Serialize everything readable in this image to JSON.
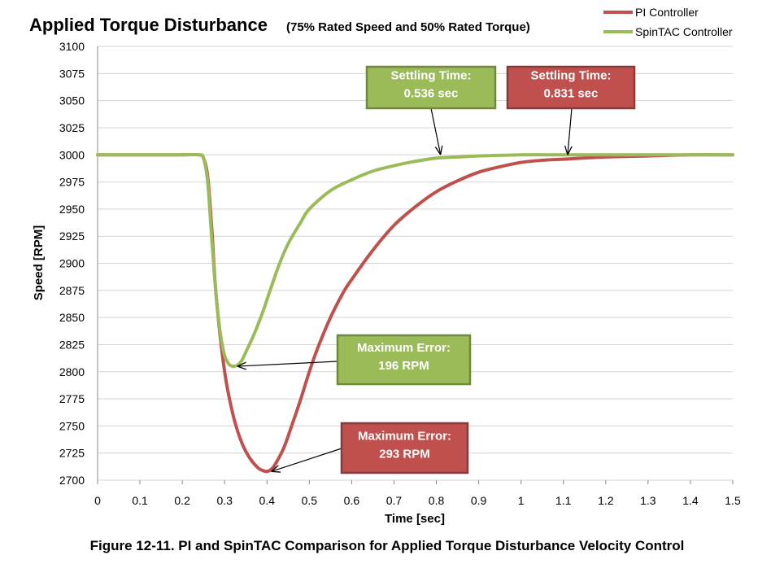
{
  "chart_data": {
    "type": "line",
    "title": "Applied Torque Disturbance",
    "subtitle": "(75% Rated Speed and 50% Rated Torque)",
    "xlabel": "Time [sec]",
    "ylabel": "Speed [RPM]",
    "xlim": [
      0,
      1.5
    ],
    "ylim": [
      2700,
      3100
    ],
    "xticks": [
      "0",
      "0.1",
      "0.2",
      "0.3",
      "0.4",
      "0.5",
      "0.6",
      "0.7",
      "0.8",
      "0.9",
      "1",
      "1.1",
      "1.2",
      "1.3",
      "1.4",
      "1.5"
    ],
    "yticks": [
      "3100",
      "3075",
      "3050",
      "3025",
      "3000",
      "2975",
      "2950",
      "2925",
      "2900",
      "2875",
      "2850",
      "2825",
      "2800",
      "2775",
      "2750",
      "2725",
      "2700"
    ],
    "grid": "horizontal",
    "legend_position": "top-right",
    "series": [
      {
        "name": "PI Controller",
        "color": "#c0504d",
        "x": [
          0,
          0.1,
          0.2,
          0.24,
          0.25,
          0.26,
          0.27,
          0.28,
          0.3,
          0.32,
          0.34,
          0.36,
          0.38,
          0.39,
          0.4,
          0.41,
          0.42,
          0.44,
          0.46,
          0.48,
          0.5,
          0.52,
          0.55,
          0.58,
          0.6,
          0.65,
          0.7,
          0.75,
          0.8,
          0.85,
          0.9,
          0.95,
          1.0,
          1.05,
          1.1,
          1.2,
          1.3,
          1.4,
          1.5
        ],
        "y": [
          3000,
          3000,
          3000,
          3000,
          2997,
          2980,
          2930,
          2870,
          2800,
          2760,
          2735,
          2720,
          2711,
          2709,
          2708,
          2710,
          2715,
          2730,
          2752,
          2775,
          2800,
          2822,
          2850,
          2873,
          2885,
          2912,
          2935,
          2952,
          2966,
          2976,
          2984,
          2989,
          2993,
          2995,
          2996,
          2998,
          2999,
          3000,
          3000
        ]
      },
      {
        "name": "SpinTAC Controller",
        "color": "#9bbb59",
        "x": [
          0,
          0.1,
          0.2,
          0.24,
          0.25,
          0.26,
          0.27,
          0.28,
          0.29,
          0.3,
          0.31,
          0.32,
          0.33,
          0.34,
          0.35,
          0.37,
          0.39,
          0.41,
          0.43,
          0.45,
          0.48,
          0.5,
          0.55,
          0.6,
          0.65,
          0.7,
          0.75,
          0.8,
          0.85,
          0.9,
          1.0,
          1.1,
          1.2,
          1.3,
          1.4,
          1.5
        ],
        "y": [
          3000,
          3000,
          3000,
          3000,
          2997,
          2975,
          2920,
          2870,
          2835,
          2815,
          2807,
          2805,
          2806,
          2810,
          2818,
          2835,
          2855,
          2878,
          2900,
          2918,
          2938,
          2950,
          2967,
          2977,
          2985,
          2990,
          2994,
          2997,
          2998,
          2999,
          3000,
          3000,
          3000,
          3000,
          3000,
          3000
        ]
      }
    ],
    "annotations": [
      {
        "lines": [
          "Settling Time:",
          "0.536 sec"
        ],
        "series": "SpinTAC Controller",
        "target": [
          0.81,
          3000
        ]
      },
      {
        "lines": [
          "Settling Time:",
          "0.831 sec"
        ],
        "series": "PI Controller",
        "target": [
          1.11,
          3000
        ]
      },
      {
        "lines": [
          "Maximum Error:",
          "196 RPM"
        ],
        "series": "SpinTAC Controller",
        "target": [
          0.33,
          2805
        ]
      },
      {
        "lines": [
          "Maximum Error:",
          "293 RPM"
        ],
        "series": "PI Controller",
        "target": [
          0.41,
          2708
        ]
      }
    ]
  },
  "caption": "Figure 12-11. PI and SpinTAC Comparison for Applied Torque Disturbance Velocity Control"
}
